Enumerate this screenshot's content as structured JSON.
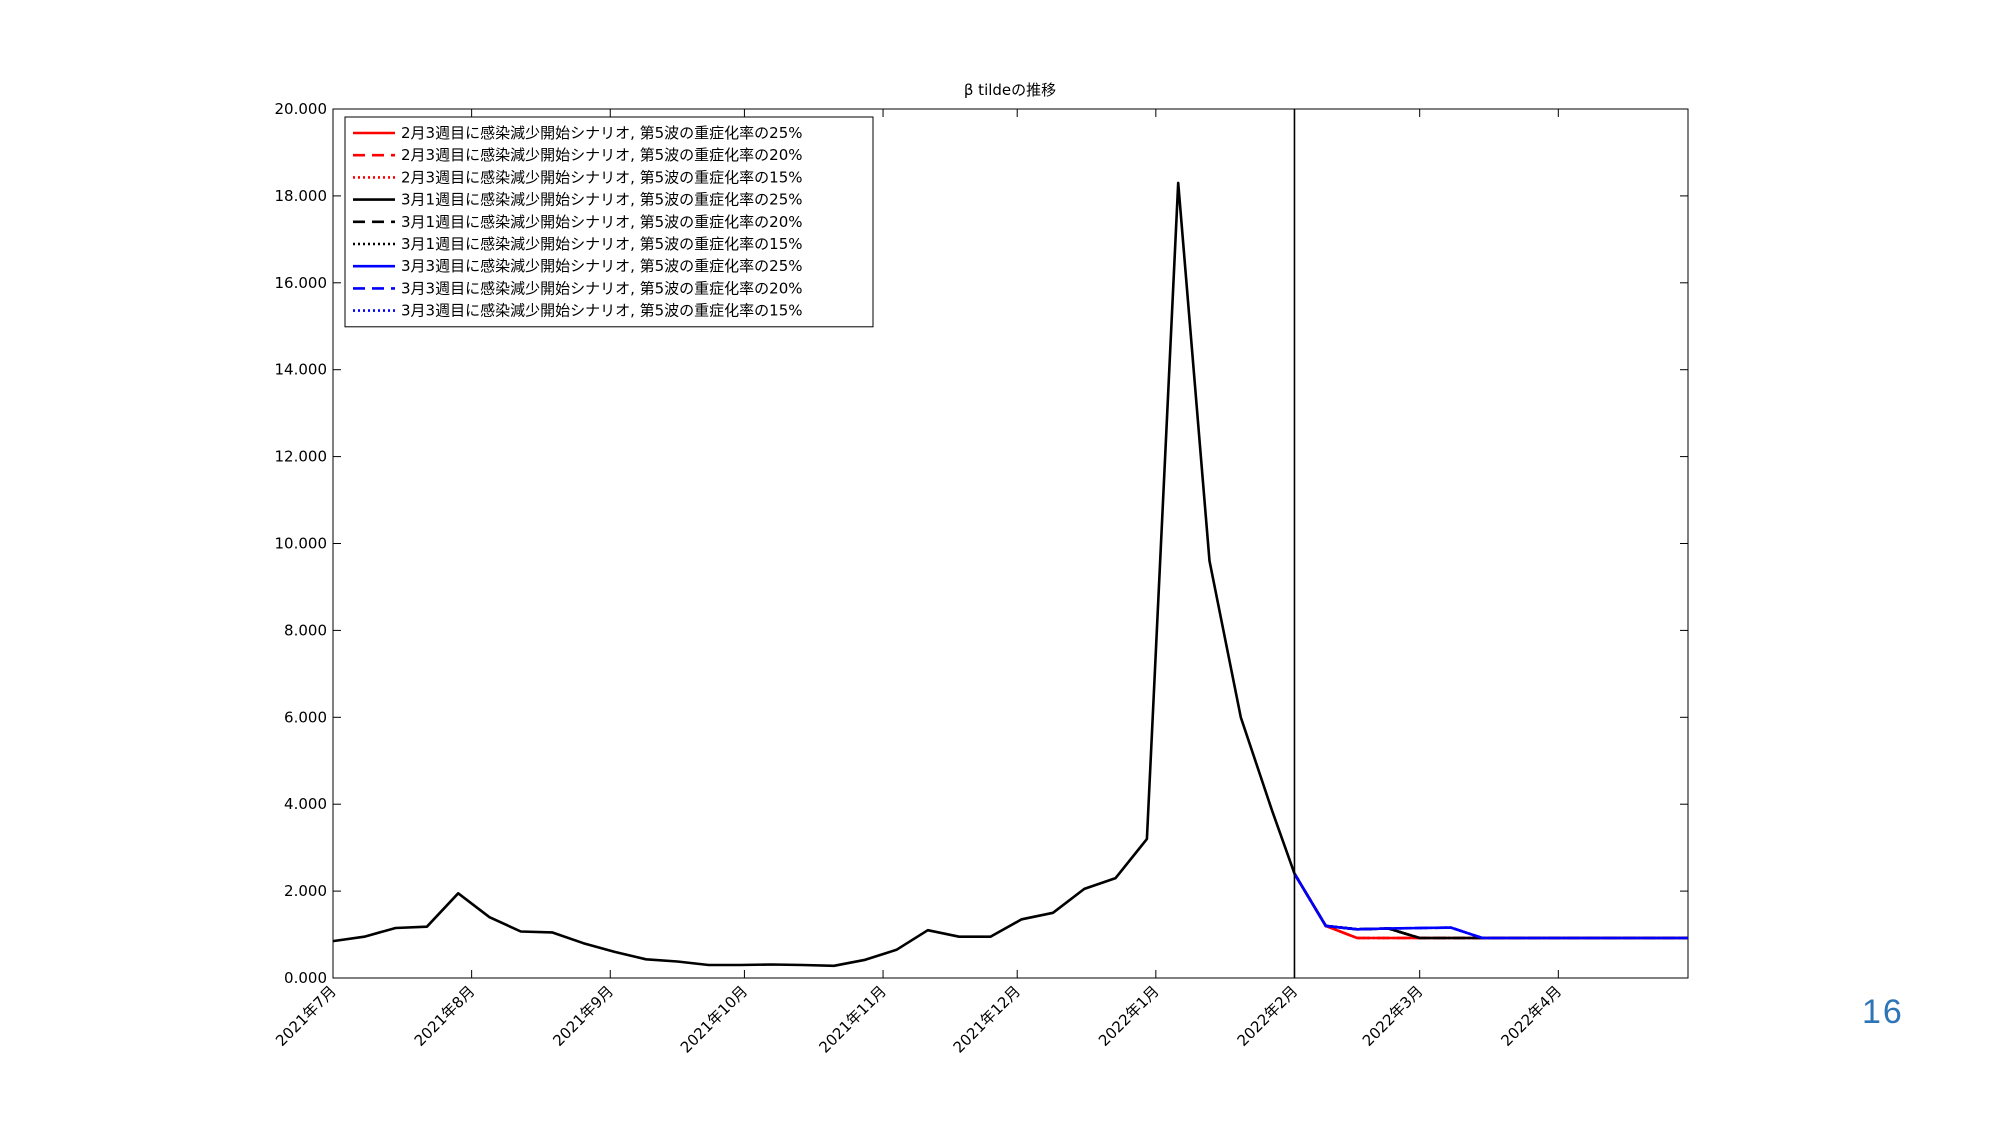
{
  "page_number": "16",
  "chart_data": {
    "type": "line",
    "title": "β tildeの推移",
    "xlabel": "",
    "ylabel": "",
    "x_ticks": [
      "2021年7月",
      "2021年8月",
      "2021年9月",
      "2021年10月",
      "2021年11月",
      "2021年12月",
      "2022年1月",
      "2022年2月",
      "2022年3月",
      "2022年4月"
    ],
    "x_range": [
      "2021-07-01",
      "2022-04-30"
    ],
    "ylim": [
      0,
      20
    ],
    "y_ticks": [
      "0.000",
      "2.000",
      "4.000",
      "6.000",
      "8.000",
      "10.000",
      "12.000",
      "14.000",
      "16.000",
      "18.000",
      "20.000"
    ],
    "grid": false,
    "legend_position": "top-left",
    "vertical_line": "2022-02-01",
    "history": {
      "x": [
        "2021-07-01",
        "2021-07-08",
        "2021-07-15",
        "2021-07-22",
        "2021-07-29",
        "2021-08-05",
        "2021-08-12",
        "2021-08-19",
        "2021-08-26",
        "2021-09-02",
        "2021-09-09",
        "2021-09-16",
        "2021-09-23",
        "2021-09-30",
        "2021-10-07",
        "2021-10-14",
        "2021-10-21",
        "2021-10-28",
        "2021-11-04",
        "2021-11-11",
        "2021-11-18",
        "2021-11-25",
        "2021-12-02",
        "2021-12-09",
        "2021-12-16",
        "2021-12-23",
        "2021-12-30",
        "2022-01-06",
        "2022-01-13",
        "2022-01-20",
        "2022-01-27",
        "2022-02-01"
      ],
      "y": [
        0.85,
        0.95,
        1.15,
        1.18,
        1.95,
        1.4,
        1.07,
        1.05,
        0.8,
        0.6,
        0.43,
        0.38,
        0.3,
        0.3,
        0.31,
        0.3,
        0.28,
        0.42,
        0.65,
        1.1,
        0.95,
        0.95,
        1.35,
        1.5,
        2.05,
        2.3,
        3.2,
        18.3,
        9.6,
        6.0,
        3.85,
        2.4
      ]
    },
    "series": [
      {
        "name": "2月3週目に感染減少開始シナリオ, 第5波の重症化率の25%",
        "color": "#ff0000",
        "dash": "solid",
        "x": [
          "2022-02-01",
          "2022-02-08",
          "2022-02-15",
          "2022-02-22",
          "2022-03-01",
          "2022-03-08",
          "2022-03-15",
          "2022-04-30"
        ],
        "y": [
          2.4,
          1.2,
          0.92,
          0.92,
          0.92,
          0.92,
          0.92,
          0.92
        ]
      },
      {
        "name": "2月3週目に感染減少開始シナリオ, 第5波の重症化率の20%",
        "color": "#ff0000",
        "dash": "dashed",
        "x": [
          "2022-02-01",
          "2022-02-08",
          "2022-02-15",
          "2022-02-22",
          "2022-03-01",
          "2022-03-08",
          "2022-03-15",
          "2022-04-30"
        ],
        "y": [
          2.4,
          1.2,
          0.92,
          0.92,
          0.92,
          0.92,
          0.92,
          0.92
        ]
      },
      {
        "name": "2月3週目に感染減少開始シナリオ, 第5波の重症化率の15%",
        "color": "#ff0000",
        "dash": "dotted",
        "x": [
          "2022-02-01",
          "2022-02-08",
          "2022-02-15",
          "2022-02-22",
          "2022-03-01",
          "2022-03-08",
          "2022-03-15",
          "2022-04-30"
        ],
        "y": [
          2.4,
          1.2,
          0.92,
          0.92,
          0.92,
          0.92,
          0.92,
          0.92
        ]
      },
      {
        "name": "3月1週目に感染減少開始シナリオ, 第5波の重症化率の25%",
        "color": "#000000",
        "dash": "solid",
        "x": [
          "2022-02-01",
          "2022-02-08",
          "2022-02-15",
          "2022-02-22",
          "2022-03-01",
          "2022-03-08",
          "2022-03-15",
          "2022-04-30"
        ],
        "y": [
          2.4,
          1.2,
          1.12,
          1.14,
          0.92,
          0.92,
          0.92,
          0.92
        ]
      },
      {
        "name": "3月1週目に感染減少開始シナリオ, 第5波の重症化率の20%",
        "color": "#000000",
        "dash": "dashed",
        "x": [
          "2022-02-01",
          "2022-02-08",
          "2022-02-15",
          "2022-02-22",
          "2022-03-01",
          "2022-03-08",
          "2022-03-15",
          "2022-04-30"
        ],
        "y": [
          2.4,
          1.2,
          1.12,
          1.14,
          0.92,
          0.92,
          0.92,
          0.92
        ]
      },
      {
        "name": "3月1週目に感染減少開始シナリオ, 第5波の重症化率の15%",
        "color": "#000000",
        "dash": "dotted",
        "x": [
          "2022-02-01",
          "2022-02-08",
          "2022-02-15",
          "2022-02-22",
          "2022-03-01",
          "2022-03-08",
          "2022-03-15",
          "2022-04-30"
        ],
        "y": [
          2.4,
          1.2,
          1.12,
          1.14,
          0.92,
          0.92,
          0.92,
          0.92
        ]
      },
      {
        "name": "3月3週目に感染減少開始シナリオ, 第5波の重症化率の25%",
        "color": "#0000ff",
        "dash": "solid",
        "x": [
          "2022-02-01",
          "2022-02-08",
          "2022-02-15",
          "2022-02-22",
          "2022-03-01",
          "2022-03-08",
          "2022-03-15",
          "2022-04-30"
        ],
        "y": [
          2.4,
          1.2,
          1.12,
          1.14,
          1.15,
          1.16,
          0.92,
          0.92
        ]
      },
      {
        "name": "3月3週目に感染減少開始シナリオ, 第5波の重症化率の20%",
        "color": "#0000ff",
        "dash": "dashed",
        "x": [
          "2022-02-01",
          "2022-02-08",
          "2022-02-15",
          "2022-02-22",
          "2022-03-01",
          "2022-03-08",
          "2022-03-15",
          "2022-04-30"
        ],
        "y": [
          2.4,
          1.2,
          1.12,
          1.14,
          1.15,
          1.16,
          0.92,
          0.92
        ]
      },
      {
        "name": "3月3週目に感染減少開始シナリオ, 第5波の重症化率の15%",
        "color": "#0000ff",
        "dash": "dotted",
        "x": [
          "2022-02-01",
          "2022-02-08",
          "2022-02-15",
          "2022-02-22",
          "2022-03-01",
          "2022-03-08",
          "2022-03-15",
          "2022-04-30"
        ],
        "y": [
          2.4,
          1.2,
          1.12,
          1.14,
          1.15,
          1.16,
          0.92,
          0.92
        ]
      }
    ]
  }
}
